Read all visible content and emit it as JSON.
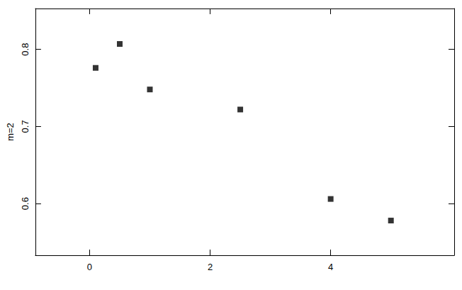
{
  "chart_data": {
    "type": "scatter",
    "ylabel": "m=2",
    "x": [
      0.1,
      0.5,
      1.0,
      2.5,
      4.0,
      5.0
    ],
    "values": [
      0.776,
      0.807,
      0.748,
      0.722,
      0.606,
      0.578
    ],
    "color": "#000000",
    "marker": "square",
    "xlim": [
      -0.9,
      6.05
    ],
    "xticks": [
      0,
      2,
      4
    ],
    "ylim": [
      0.533,
      0.853
    ],
    "yticks": [
      0.6,
      0.7,
      0.8
    ],
    "grid": false
  }
}
